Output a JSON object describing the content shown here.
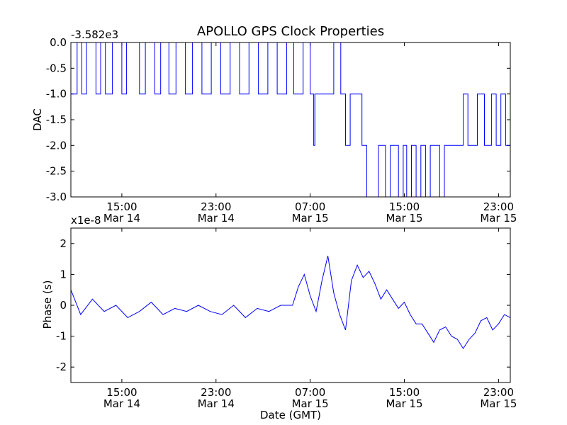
{
  "chart_data": [
    {
      "type": "line",
      "title": "APOLLO GPS Clock Properties",
      "ylabel": "DAC",
      "offset_text": "-3.582e3",
      "ylim": [
        -3.0,
        0.0
      ],
      "yticks": [
        "0.0",
        "-0.5",
        "-1.0",
        "-1.5",
        "-2.0",
        "-2.5",
        "-3.0"
      ],
      "xlim": [
        "Mar 14 10:40",
        "Mar 16 00:00"
      ],
      "xticks": [
        {
          "time": "15:00",
          "date": "Mar 14"
        },
        {
          "time": "23:00",
          "date": "Mar 14"
        },
        {
          "time": "07:00",
          "date": "Mar 15"
        },
        {
          "time": "15:00",
          "date": "Mar 15"
        },
        {
          "time": "23:00",
          "date": "Mar 15"
        }
      ],
      "color": "#0000ff",
      "series": [
        {
          "x_hours_from_mar14_0000": [
            10.67,
            11.2,
            11.6,
            12.0,
            12.8,
            13.2,
            13.6,
            14.2,
            15.0,
            15.4,
            16.5,
            17.0,
            17.8,
            18.3,
            19.0,
            19.6,
            20.4,
            21.0,
            21.8,
            22.6,
            23.4,
            24.2,
            25.0,
            25.8,
            26.6,
            27.4,
            28.2,
            29.0,
            29.6,
            30.4,
            31.0,
            31.3,
            31.4,
            33.0,
            33.6,
            34.0,
            34.4,
            35.4,
            35.8,
            36.8,
            37.4,
            37.8,
            38.5,
            38.9,
            39.2,
            39.6,
            40.0,
            40.4,
            40.8,
            41.2,
            41.6,
            42.0,
            42.4,
            42.8,
            43.2,
            43.6,
            44.0,
            44.4,
            45.2,
            45.8,
            46.4,
            46.8,
            47.2,
            47.6,
            48.0
          ],
          "y": [
            -1.0,
            0.0,
            -1.0,
            0.0,
            -1.0,
            0.0,
            -1.0,
            0.0,
            -1.0,
            0.0,
            -1.0,
            0.0,
            -1.0,
            0.0,
            -1.0,
            0.0,
            -1.0,
            0.0,
            -1.0,
            0.0,
            -1.0,
            0.0,
            -1.0,
            0.0,
            -1.0,
            0.0,
            -1.0,
            0.0,
            -1.0,
            0.0,
            -1.0,
            -2.0,
            -1.0,
            0.0,
            -1.0,
            -2.0,
            -1.0,
            -2.0,
            -3.0,
            -2.0,
            -3.0,
            -2.0,
            -3.0,
            -2.0,
            -3.0,
            -2.0,
            -3.0,
            -2.0,
            -3.0,
            -2.0,
            -2.0,
            -3.0,
            -2.0,
            -2.0,
            -2.0,
            -2.0,
            -1.0,
            -2.0,
            -1.0,
            -2.0,
            -1.0,
            -2.0,
            -1.0,
            -2.0,
            -1.0
          ]
        }
      ]
    },
    {
      "type": "line",
      "ylabel": "Phase (s)",
      "xlabel": "Date (GMT)",
      "offset_text": "x1e-8",
      "ylim": [
        -2.5,
        2.5
      ],
      "yticks": [
        "2",
        "1",
        "0",
        "-1",
        "-2"
      ],
      "xticks": [
        {
          "time": "15:00",
          "date": "Mar 14"
        },
        {
          "time": "23:00",
          "date": "Mar 14"
        },
        {
          "time": "07:00",
          "date": "Mar 15"
        },
        {
          "time": "15:00",
          "date": "Mar 15"
        },
        {
          "time": "23:00",
          "date": "Mar 15"
        }
      ],
      "color": "#0000ff",
      "series": [
        {
          "x_hours_from_mar14_0000": [
            10.67,
            11.5,
            12.5,
            13.5,
            14.5,
            15.5,
            16.5,
            17.5,
            18.5,
            19.5,
            20.5,
            21.5,
            22.5,
            23.5,
            24.5,
            25.5,
            26.5,
            27.5,
            28.5,
            29.5,
            30.0,
            30.5,
            31.0,
            31.5,
            32.0,
            32.5,
            33.0,
            33.5,
            34.0,
            34.5,
            35.0,
            35.5,
            36.0,
            36.5,
            37.0,
            37.5,
            38.0,
            38.5,
            39.0,
            39.5,
            40.0,
            40.5,
            41.0,
            41.5,
            42.0,
            42.5,
            43.0,
            43.5,
            44.0,
            44.5,
            45.0,
            45.5,
            46.0,
            46.5,
            47.0,
            47.5,
            48.0
          ],
          "y": [
            0.5,
            -0.3,
            0.2,
            -0.2,
            0.0,
            -0.4,
            -0.2,
            0.1,
            -0.3,
            -0.1,
            -0.2,
            0.0,
            -0.2,
            -0.3,
            0.0,
            -0.4,
            -0.1,
            -0.2,
            0.0,
            0.0,
            0.6,
            1.0,
            0.3,
            -0.2,
            0.8,
            1.6,
            0.4,
            -0.3,
            -0.8,
            0.8,
            1.3,
            0.9,
            1.1,
            0.7,
            0.2,
            0.5,
            0.2,
            -0.1,
            0.1,
            -0.3,
            -0.6,
            -0.6,
            -0.9,
            -1.2,
            -0.8,
            -0.7,
            -1.0,
            -1.1,
            -1.4,
            -1.1,
            -0.9,
            -0.5,
            -0.4,
            -0.8,
            -0.6,
            -0.3,
            -0.4
          ]
        }
      ]
    }
  ]
}
